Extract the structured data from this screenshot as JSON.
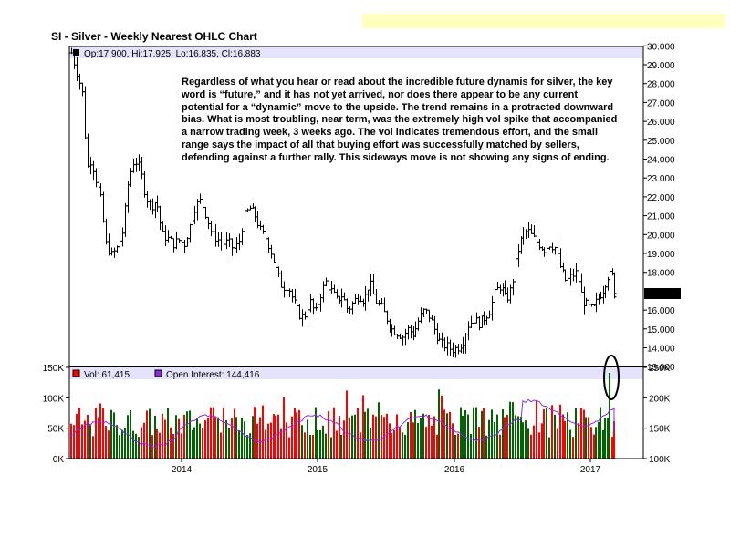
{
  "chart": {
    "title": "SI - Silver - Weekly Nearest OHLC Chart",
    "ohlc_readout": "Op:17.900, Hi:17.925, Lo:16.835, Cl:16.883",
    "last_price_label": "16.883",
    "volume_readout": "Vol: 61,415",
    "open_interest_readout": "Open Interest: 144,416",
    "commentary": "Regardless of what you hear or read about the incredible future dynamis for silver, the key word is “future,” and it has not yet arrived, nor does there appear to be any current potential for a “dynamic” move to the upside.  The trend remains in a protracted downward bias.  What is most troubling, near term, was the extremely high vol spike that accompanied a narrow trading week, 3 weeks ago.  The vol indicates tremendous effort, and the small range says the impact of all that buying effort was successfully matched by sellers, defending against a further rally.  This sideways move is not showing any signs of ending.",
    "colors": {
      "header_band": "#e3e3fb",
      "top_band": "#ffffc0",
      "vol_up": "#006400",
      "vol_down": "#ff0000",
      "oi_line": "#8a2be2",
      "price_bar": "#000000",
      "last_price_box": "#000000",
      "last_price_text": "#ffffff",
      "highlight_ellipse": "#000000"
    }
  },
  "chart_data": [
    {
      "type": "ohlc",
      "title": "SI - Silver - Weekly Nearest OHLC Chart",
      "y_tick_labels": [
        "30.000",
        "29.000",
        "28.000",
        "27.000",
        "26.000",
        "25.000",
        "24.000",
        "23.000",
        "22.000",
        "21.000",
        "20.000",
        "19.000",
        "18.000",
        "16.000",
        "15.000",
        "14.000",
        "13.000"
      ],
      "ylim": [
        13,
        30
      ],
      "x_tick_labels": [
        "2014",
        "2015",
        "2016",
        "2017"
      ],
      "last_bar": {
        "open": 17.9,
        "high": 17.925,
        "low": 16.835,
        "close": 16.883
      },
      "close_path": [
        [
          2013.23,
          29.1
        ],
        [
          2013.26,
          28.3
        ],
        [
          2013.29,
          27.4
        ],
        [
          2013.32,
          23.5
        ],
        [
          2013.35,
          24.0
        ],
        [
          2013.38,
          23.0
        ],
        [
          2013.42,
          22.0
        ],
        [
          2013.46,
          19.5
        ],
        [
          2013.5,
          18.9
        ],
        [
          2013.54,
          19.3
        ],
        [
          2013.58,
          20.2
        ],
        [
          2013.62,
          23.0
        ],
        [
          2013.66,
          24.0
        ],
        [
          2013.7,
          23.5
        ],
        [
          2013.74,
          22.0
        ],
        [
          2013.78,
          21.5
        ],
        [
          2013.82,
          21.8
        ],
        [
          2013.86,
          20.0
        ],
        [
          2013.9,
          19.8
        ],
        [
          2013.94,
          19.5
        ],
        [
          2013.98,
          19.7
        ],
        [
          2014.02,
          19.5
        ],
        [
          2014.06,
          20.5
        ],
        [
          2014.1,
          21.5
        ],
        [
          2014.14,
          21.8
        ],
        [
          2014.18,
          21.0
        ],
        [
          2014.22,
          20.0
        ],
        [
          2014.26,
          19.8
        ],
        [
          2014.3,
          19.5
        ],
        [
          2014.34,
          19.6
        ],
        [
          2014.38,
          19.2
        ],
        [
          2014.42,
          19.5
        ],
        [
          2014.46,
          21.0
        ],
        [
          2014.5,
          21.4
        ],
        [
          2014.54,
          21.0
        ],
        [
          2014.58,
          20.2
        ],
        [
          2014.62,
          19.8
        ],
        [
          2014.66,
          19.0
        ],
        [
          2014.7,
          18.0
        ],
        [
          2014.74,
          17.2
        ],
        [
          2014.78,
          17.3
        ],
        [
          2014.82,
          16.5
        ],
        [
          2014.86,
          15.8
        ],
        [
          2014.9,
          15.6
        ],
        [
          2014.94,
          16.5
        ],
        [
          2014.98,
          15.8
        ],
        [
          2015.02,
          16.8
        ],
        [
          2015.06,
          17.5
        ],
        [
          2015.1,
          17.0
        ],
        [
          2015.14,
          16.5
        ],
        [
          2015.18,
          16.8
        ],
        [
          2015.22,
          16.0
        ],
        [
          2015.26,
          16.4
        ],
        [
          2015.3,
          16.8
        ],
        [
          2015.34,
          16.5
        ],
        [
          2015.38,
          17.5
        ],
        [
          2015.42,
          16.5
        ],
        [
          2015.46,
          16.2
        ],
        [
          2015.5,
          15.6
        ],
        [
          2015.54,
          15.0
        ],
        [
          2015.58,
          14.8
        ],
        [
          2015.62,
          14.6
        ],
        [
          2015.66,
          15.0
        ],
        [
          2015.7,
          14.7
        ],
        [
          2015.74,
          15.5
        ],
        [
          2015.78,
          16.0
        ],
        [
          2015.82,
          15.6
        ],
        [
          2015.86,
          14.8
        ],
        [
          2015.9,
          14.2
        ],
        [
          2015.94,
          14.1
        ],
        [
          2015.98,
          13.9
        ],
        [
          2016.02,
          14.0
        ],
        [
          2016.06,
          14.3
        ],
        [
          2016.1,
          15.2
        ],
        [
          2016.14,
          15.5
        ],
        [
          2016.18,
          15.3
        ],
        [
          2016.22,
          15.6
        ],
        [
          2016.26,
          16.0
        ],
        [
          2016.3,
          17.0
        ],
        [
          2016.34,
          17.3
        ],
        [
          2016.38,
          16.5
        ],
        [
          2016.42,
          17.2
        ],
        [
          2016.46,
          19.0
        ],
        [
          2016.5,
          20.0
        ],
        [
          2016.54,
          20.2
        ],
        [
          2016.58,
          19.8
        ],
        [
          2016.62,
          19.5
        ],
        [
          2016.66,
          19.2
        ],
        [
          2016.7,
          19.5
        ],
        [
          2016.74,
          19.3
        ],
        [
          2016.78,
          18.2
        ],
        [
          2016.82,
          17.5
        ],
        [
          2016.86,
          17.8
        ],
        [
          2016.9,
          18.0
        ],
        [
          2016.94,
          16.5
        ],
        [
          2016.98,
          16.2
        ],
        [
          2017.02,
          16.0
        ],
        [
          2017.06,
          16.6
        ],
        [
          2017.1,
          17.0
        ],
        [
          2017.14,
          17.8
        ],
        [
          2017.18,
          17.9
        ],
        [
          2017.2,
          16.883
        ]
      ]
    },
    {
      "type": "bar",
      "series_names": [
        "Vol",
        "Open Interest"
      ],
      "y_tick_labels_left": [
        "150K",
        "100K",
        "50K",
        "0K"
      ],
      "ylim_left": [
        0,
        150000
      ],
      "y_tick_labels_right": [
        "250K",
        "200K",
        "150K",
        "100K"
      ],
      "ylim_right": [
        100000,
        250000
      ],
      "x_tick_labels": [
        "2014",
        "2015",
        "2016",
        "2017"
      ],
      "last_volume": 61415,
      "last_open_interest": 144416,
      "volume_peak_note": "highlighted spike 3 weeks before last bar"
    }
  ]
}
